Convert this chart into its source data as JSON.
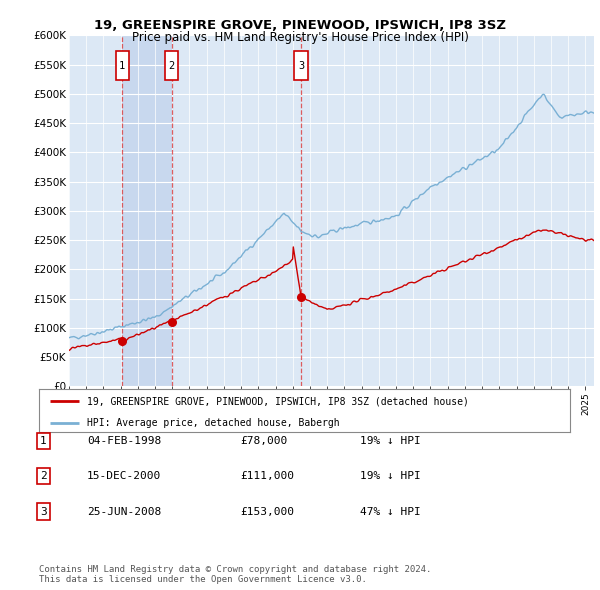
{
  "title": "19, GREENSPIRE GROVE, PINEWOOD, IPSWICH, IP8 3SZ",
  "subtitle": "Price paid vs. HM Land Registry's House Price Index (HPI)",
  "ylim": [
    0,
    600000
  ],
  "yticks": [
    0,
    50000,
    100000,
    150000,
    200000,
    250000,
    300000,
    350000,
    400000,
    450000,
    500000,
    550000,
    600000
  ],
  "ytick_labels": [
    "£0",
    "£50K",
    "£100K",
    "£150K",
    "£200K",
    "£250K",
    "£300K",
    "£350K",
    "£400K",
    "£450K",
    "£500K",
    "£550K",
    "£600K"
  ],
  "plot_bg_color": "#dce8f5",
  "grid_color": "#ffffff",
  "sales": [
    {
      "date_num": 1998.09,
      "price": 78000,
      "label": "1"
    },
    {
      "date_num": 2000.96,
      "price": 111000,
      "label": "2"
    },
    {
      "date_num": 2008.48,
      "price": 153000,
      "label": "3"
    }
  ],
  "sale_color": "#cc0000",
  "hpi_color": "#7ab0d4",
  "legend_label_sale": "19, GREENSPIRE GROVE, PINEWOOD, IPSWICH, IP8 3SZ (detached house)",
  "legend_label_hpi": "HPI: Average price, detached house, Babergh",
  "table_entries": [
    {
      "num": "1",
      "date": "04-FEB-1998",
      "price": "£78,000",
      "note": "19% ↓ HPI"
    },
    {
      "num": "2",
      "date": "15-DEC-2000",
      "price": "£111,000",
      "note": "19% ↓ HPI"
    },
    {
      "num": "3",
      "date": "25-JUN-2008",
      "price": "£153,000",
      "note": "47% ↓ HPI"
    }
  ],
  "footnote": "Contains HM Land Registry data © Crown copyright and database right 2024.\nThis data is licensed under the Open Government Licence v3.0.",
  "vline_color": "#dd4444",
  "vline_dates": [
    1998.09,
    2000.96,
    2008.48
  ],
  "span_color": "#c8d8ee",
  "xlim": [
    1995.0,
    2025.5
  ],
  "seed": 42
}
